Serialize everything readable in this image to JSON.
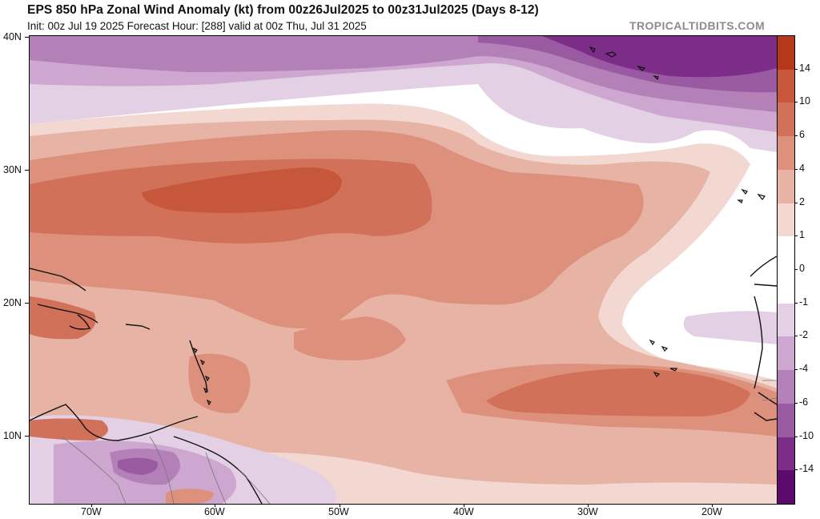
{
  "header": {
    "title": "EPS 850 hPa Zonal Wind Anomaly (kt) from 00z26Jul2025 to 00z31Jul2025 (Days 8-12)",
    "subtitle": "Init: 00z Jul 19 2025   Forecast Hour: [288]   valid at 00z Thu, Jul 31 2025",
    "credit": "TROPICALTIDBITS.COM"
  },
  "axes": {
    "lat_labels": [
      "40N",
      "30N",
      "20N",
      "10N"
    ],
    "lon_labels": [
      "70W",
      "60W",
      "50W",
      "40W",
      "30W",
      "20W"
    ]
  },
  "colorbar": {
    "labels": [
      "14",
      "10",
      "6",
      "4",
      "2",
      "1",
      "0",
      "-1",
      "-2",
      "-4",
      "-6",
      "-10",
      "-14"
    ],
    "colors": [
      "#b5381b",
      "#c7573a",
      "#d2715a",
      "#dd917c",
      "#e7b3a5",
      "#f2d8d0",
      "#ffffff",
      "#ffffff",
      "#e3d0e5",
      "#cda7d0",
      "#b381b8",
      "#9a5aa2",
      "#7c2d88",
      "#5c0a6c"
    ]
  },
  "map": {
    "region": "Tropical Atlantic",
    "lat_range": [
      5,
      40
    ],
    "lon_range": [
      -75,
      -15
    ],
    "field": "850 hPa zonal wind anomaly",
    "units": "kt"
  }
}
